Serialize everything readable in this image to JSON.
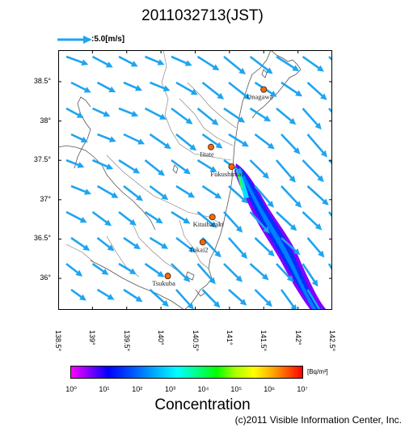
{
  "title": "2011032713(JST)",
  "wind_reference": {
    "label": ":5.0[m/s]",
    "speed_ms": 5.0
  },
  "map": {
    "lon_range": [
      138.5,
      142.5
    ],
    "lat_range": [
      35.6,
      38.9
    ],
    "lat_labels": [
      "38.5°",
      "38°",
      "37.5°",
      "37°",
      "36.5°",
      "36°"
    ],
    "lat_values": [
      38.5,
      38.0,
      37.5,
      37.0,
      36.5,
      36.0
    ],
    "lon_labels": [
      "138.5°",
      "139°",
      "139.5°",
      "140°",
      "140.5°",
      "141°",
      "141.5°",
      "142°",
      "142.5°"
    ],
    "lon_values": [
      138.5,
      139.0,
      139.5,
      140.0,
      140.5,
      141.0,
      141.5,
      142.0,
      142.5
    ],
    "arrow_color": "#1ea5f0",
    "stations": [
      {
        "name": "Onagawa",
        "lon": 141.5,
        "lat": 38.4
      },
      {
        "name": "Iitate",
        "lon": 140.73,
        "lat": 37.67
      },
      {
        "name": "Fukushima1",
        "lon": 141.03,
        "lat": 37.42
      },
      {
        "name": "Kitaibaraki",
        "lon": 140.75,
        "lat": 36.78
      },
      {
        "name": "Tokai2",
        "lon": 140.61,
        "lat": 36.46
      },
      {
        "name": "Tsukuba",
        "lon": 140.1,
        "lat": 36.03
      }
    ],
    "station_color": "#ff6600"
  },
  "colorbar": {
    "unit": "[Bq/m³]",
    "ticks": [
      "10⁰",
      "10¹",
      "10²",
      "10³",
      "10⁴",
      "10⁵",
      "10⁶",
      "10⁷"
    ],
    "title": "Concentration"
  },
  "credit": "(c)2011 Visible Information Center, Inc."
}
